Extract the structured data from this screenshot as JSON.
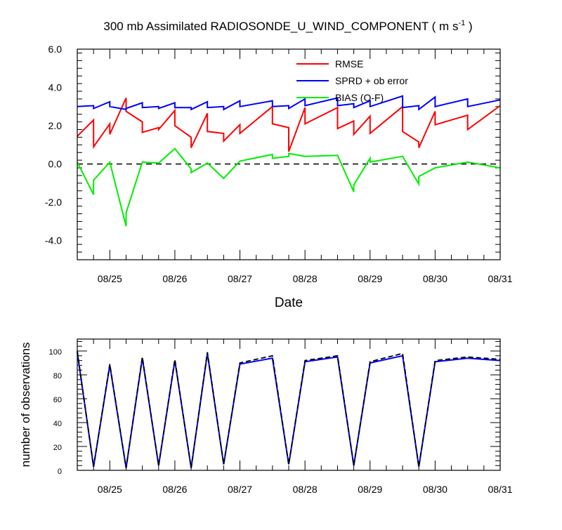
{
  "chart_data": [
    {
      "type": "line",
      "title_main": "300 mb Assimilated RADIOSONDE_U_WIND_COMPONENT ( m s",
      "title_sup": "-1",
      "title_end": " )",
      "xlabel": "Date",
      "ylabel": "",
      "ylim": [
        -5.0,
        6.0
      ],
      "yticks": [
        "-4.0",
        "-2.0",
        "0.0",
        "2.0",
        "4.0",
        "6.0"
      ],
      "xlim": [
        24.5,
        31.0
      ],
      "xticks": [
        "08/25",
        "08/26",
        "08/27",
        "08/28",
        "08/29",
        "08/30",
        "08/31"
      ],
      "zero_line": "dashed",
      "legend_position": "top-right",
      "series": [
        {
          "name": "RMSE",
          "color": "#ff0000",
          "x": [
            24.5,
            24.75,
            24.75,
            25.0,
            25.0,
            25.25,
            25.25,
            25.5,
            25.5,
            25.75,
            25.75,
            26.0,
            26.0,
            26.25,
            26.25,
            26.5,
            26.5,
            26.75,
            26.75,
            27.0,
            27.0,
            27.5,
            27.5,
            27.75,
            27.75,
            28.0,
            28.0,
            28.5,
            28.5,
            28.75,
            28.75,
            29.0,
            29.0,
            29.5,
            29.5,
            29.75,
            29.75,
            30.0,
            30.0,
            30.5,
            30.5,
            31.0
          ],
          "y": [
            1.45,
            2.3,
            0.9,
            2.1,
            1.55,
            3.45,
            2.75,
            2.2,
            1.65,
            1.9,
            1.8,
            2.8,
            2.0,
            1.4,
            0.85,
            2.65,
            1.7,
            1.6,
            1.2,
            2.05,
            1.6,
            3.0,
            2.1,
            1.9,
            0.65,
            2.95,
            2.1,
            2.95,
            1.85,
            2.25,
            1.55,
            2.5,
            1.6,
            3.0,
            1.7,
            1.15,
            0.85,
            2.75,
            2.05,
            2.55,
            1.8,
            3.05
          ]
        },
        {
          "name": "SPRD + ob error",
          "color": "#0000ff",
          "x": [
            24.5,
            24.75,
            24.75,
            25.0,
            25.0,
            25.25,
            25.25,
            25.5,
            25.5,
            25.75,
            25.75,
            26.0,
            26.0,
            26.25,
            26.25,
            26.5,
            26.5,
            26.75,
            26.75,
            27.0,
            27.0,
            27.5,
            27.5,
            27.75,
            27.75,
            28.0,
            28.0,
            28.5,
            28.5,
            28.75,
            28.75,
            29.0,
            29.0,
            29.5,
            29.5,
            29.75,
            29.75,
            30.0,
            30.0,
            30.5,
            30.5,
            31.0
          ],
          "y": [
            3.0,
            3.05,
            2.9,
            3.25,
            3.0,
            2.85,
            2.9,
            3.2,
            2.95,
            3.0,
            2.9,
            3.2,
            2.95,
            2.95,
            2.85,
            3.25,
            2.95,
            3.0,
            2.85,
            3.3,
            3.0,
            3.3,
            3.0,
            3.05,
            2.9,
            3.4,
            3.05,
            3.45,
            3.05,
            3.15,
            2.95,
            3.3,
            3.0,
            3.55,
            2.95,
            3.05,
            2.85,
            3.5,
            3.0,
            3.4,
            3.0,
            3.35
          ]
        },
        {
          "name": "BIAS (O-F)",
          "color": "#00ee00",
          "x": [
            24.5,
            24.75,
            24.75,
            25.0,
            25.25,
            25.25,
            25.5,
            25.75,
            26.0,
            26.25,
            26.25,
            26.5,
            26.75,
            27.0,
            27.5,
            27.5,
            27.75,
            27.75,
            28.0,
            28.5,
            28.75,
            28.75,
            29.0,
            29.0,
            29.5,
            29.75,
            29.75,
            30.0,
            30.5,
            31.0
          ],
          "y": [
            0.1,
            -1.6,
            -0.85,
            0.1,
            -3.25,
            -2.55,
            0.1,
            0.05,
            0.8,
            -0.25,
            -0.45,
            0.05,
            -0.75,
            0.15,
            0.5,
            0.3,
            0.4,
            0.55,
            0.4,
            0.45,
            -1.45,
            -1.1,
            0.3,
            0.1,
            0.4,
            -1.05,
            -0.65,
            -0.2,
            0.1,
            -0.2
          ]
        }
      ]
    },
    {
      "type": "line",
      "title_main": "",
      "xlabel": "",
      "ylabel": "number of observations",
      "ylim": [
        0,
        110
      ],
      "yticks": [
        "0",
        "20",
        "40",
        "60",
        "80",
        "100"
      ],
      "xlim": [
        24.5,
        31.0
      ],
      "xticks": [
        "08/25",
        "08/26",
        "08/27",
        "08/28",
        "08/29",
        "08/30",
        "08/31"
      ],
      "series": [
        {
          "name": "",
          "color": "#0000ff",
          "style": "solid",
          "x": [
            24.5,
            24.75,
            25.0,
            25.25,
            25.5,
            25.75,
            26.0,
            26.25,
            26.5,
            26.75,
            27.0,
            27.5,
            27.75,
            28.0,
            28.5,
            28.75,
            29.0,
            29.5,
            29.75,
            30.0,
            30.5,
            31.0
          ],
          "y": [
            99,
            3,
            88,
            2,
            94,
            4,
            92,
            2,
            98,
            5,
            89,
            94,
            5,
            91,
            95,
            4,
            90,
            96,
            3,
            91,
            94,
            92
          ]
        },
        {
          "name": "",
          "color": "#000000",
          "style": "dashed",
          "x": [
            24.5,
            24.75,
            25.0,
            25.25,
            25.5,
            25.75,
            26.0,
            26.25,
            26.5,
            26.75,
            27.0,
            27.5,
            27.75,
            28.0,
            28.5,
            28.75,
            29.0,
            29.5,
            29.75,
            30.0,
            30.5,
            31.0
          ],
          "y": [
            100,
            3,
            89,
            2,
            95,
            4,
            93,
            2,
            99,
            5,
            90,
            96,
            5,
            92,
            96,
            4,
            91,
            98,
            3,
            92,
            95,
            93
          ]
        }
      ]
    }
  ]
}
